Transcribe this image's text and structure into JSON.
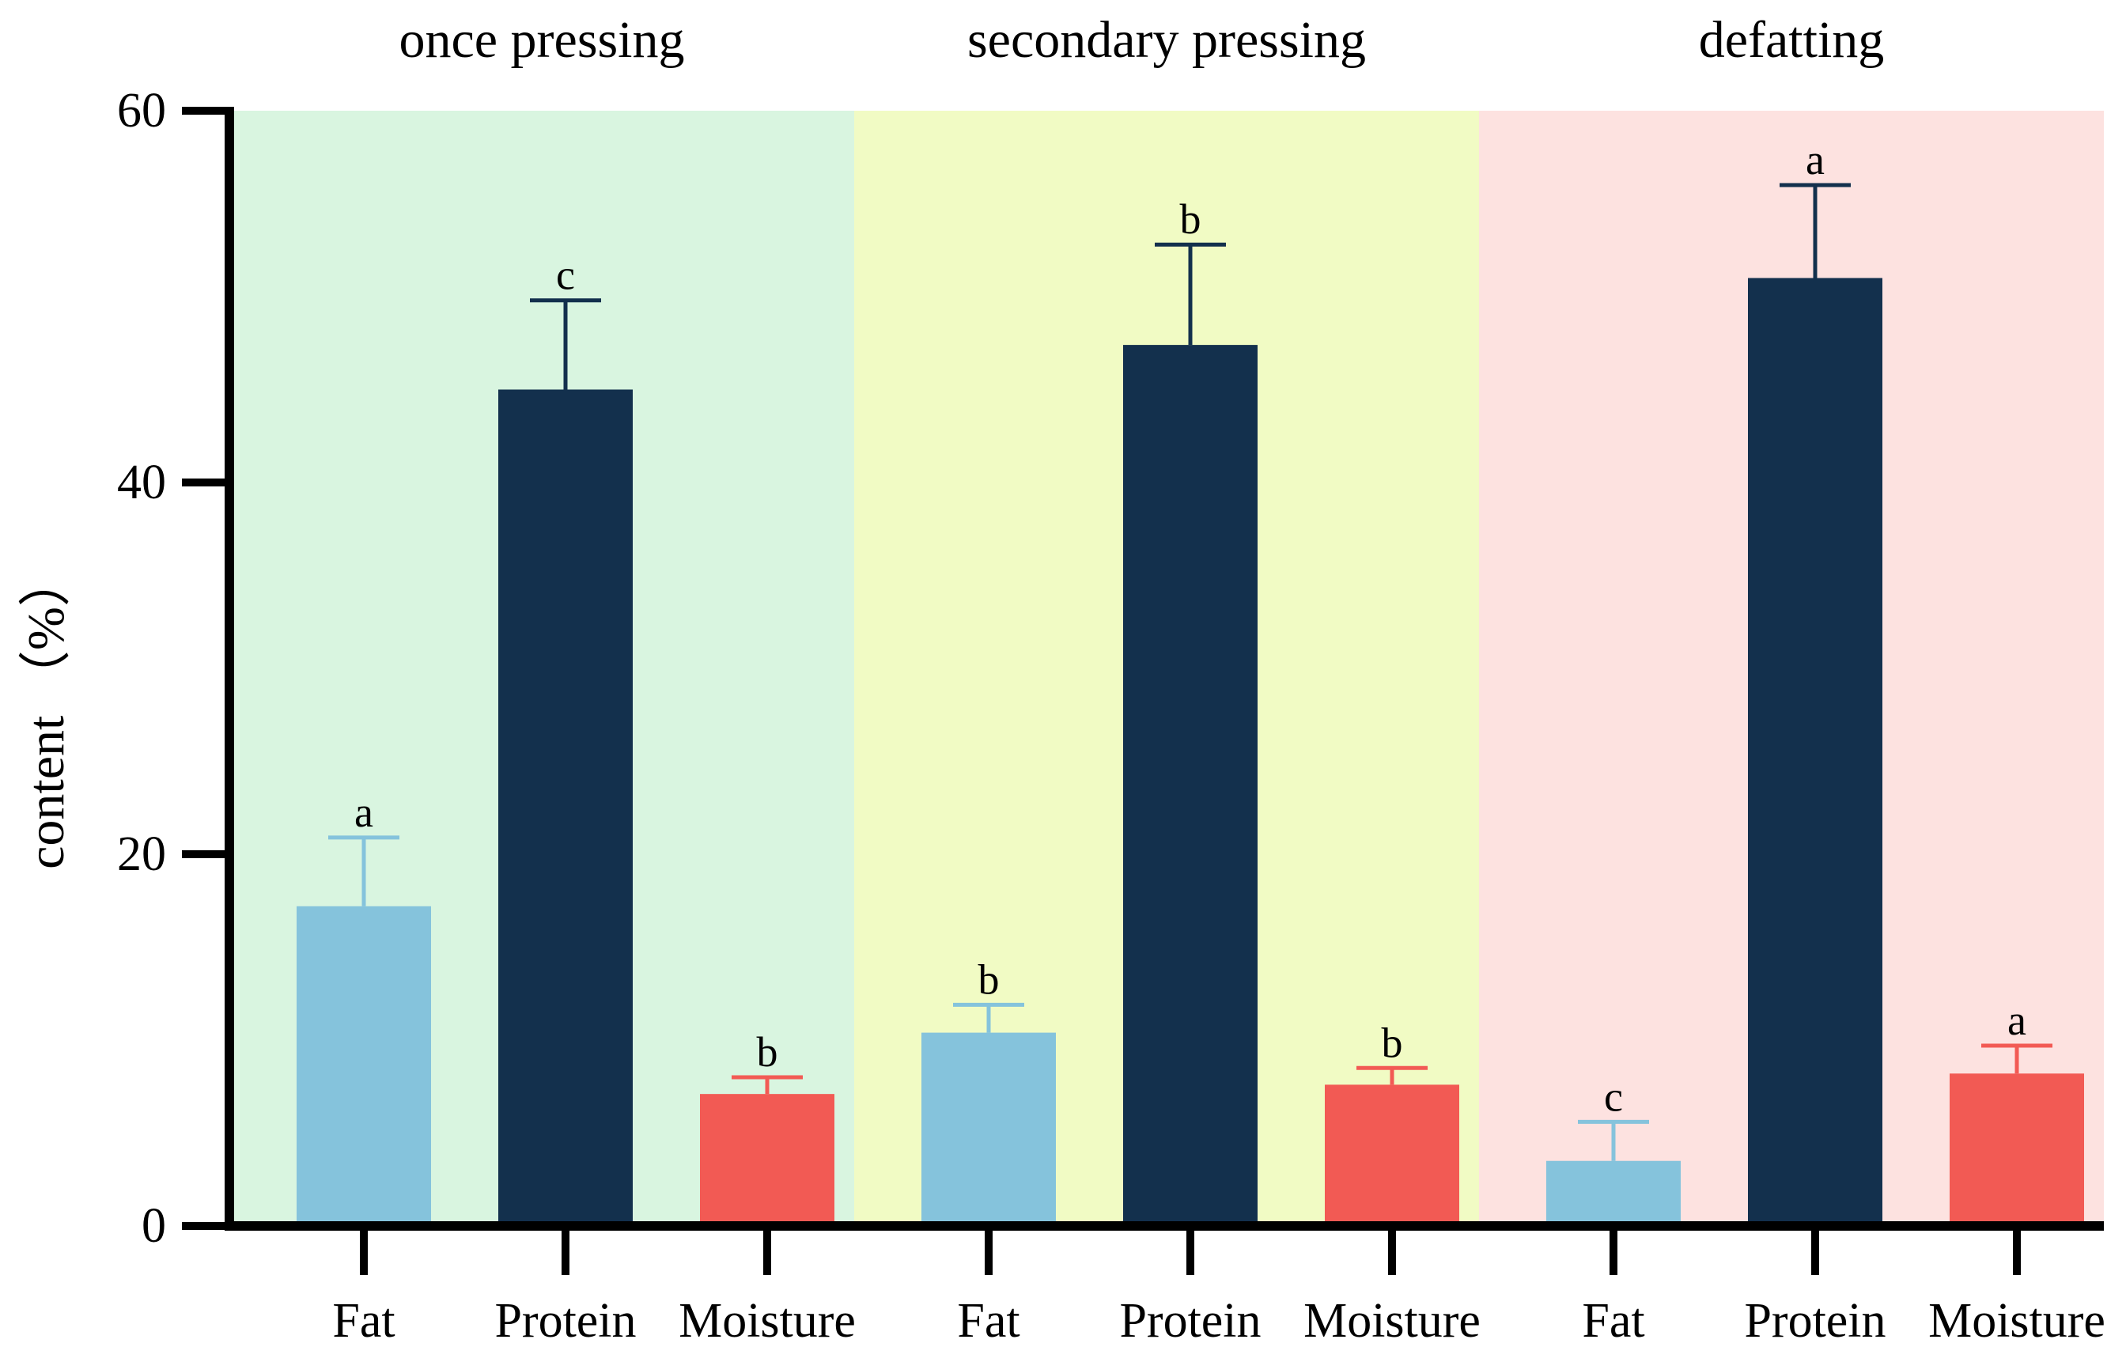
{
  "chart_data": {
    "type": "bar",
    "ylabel": "content （%）",
    "ylim": [
      0,
      60
    ],
    "yticks": [
      0,
      20,
      40,
      60
    ],
    "grid": false,
    "groups": [
      {
        "title": "once pressing",
        "background": "#d9f5e0",
        "bars": [
          {
            "category": "Fat",
            "value": 17.2,
            "error": 3.7,
            "significance": "a",
            "color": "#85c3dc"
          },
          {
            "category": "Protein",
            "value": 45.0,
            "error": 4.8,
            "significance": "c",
            "color": "#13304d"
          },
          {
            "category": "Moisture",
            "value": 7.1,
            "error": 0.9,
            "significance": "b",
            "color": "#f25a54"
          }
        ]
      },
      {
        "title": "secondary pressing",
        "background": "#f1fbc4",
        "bars": [
          {
            "category": "Fat",
            "value": 10.4,
            "error": 1.5,
            "significance": "b",
            "color": "#85c3dc"
          },
          {
            "category": "Protein",
            "value": 47.4,
            "error": 5.4,
            "significance": "b",
            "color": "#13304d"
          },
          {
            "category": "Moisture",
            "value": 7.6,
            "error": 0.9,
            "significance": "b",
            "color": "#f25a54"
          }
        ]
      },
      {
        "title": "defatting",
        "background": "#fde2e0",
        "bars": [
          {
            "category": "Fat",
            "value": 3.5,
            "error": 2.1,
            "significance": "c",
            "color": "#85c3dc"
          },
          {
            "category": "Protein",
            "value": 51.0,
            "error": 5.0,
            "significance": "a",
            "color": "#13304d"
          },
          {
            "category": "Moisture",
            "value": 8.2,
            "error": 1.5,
            "significance": "a",
            "color": "#f25a54"
          }
        ]
      }
    ]
  }
}
